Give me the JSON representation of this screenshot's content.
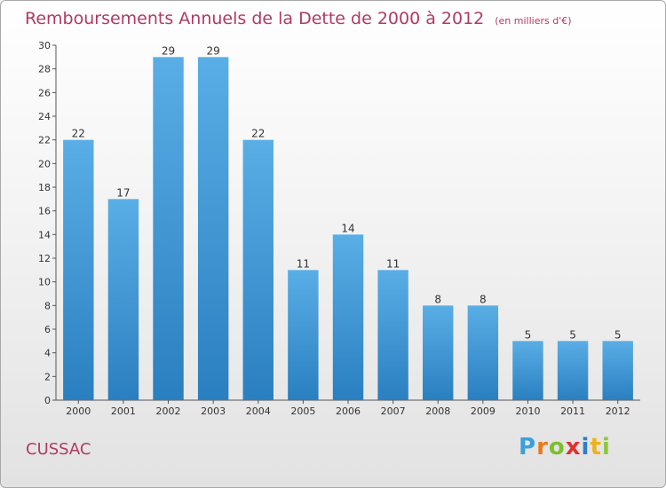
{
  "header": {
    "title": "Remboursements Annuels de la Dette de 2000 à 2012",
    "unit": "(en milliers d'€)"
  },
  "footer": {
    "commune": "CUSSAC",
    "logo_text": "Proxiti"
  },
  "colors": {
    "bar_top": "#5aaee6",
    "bar_bottom": "#2a7fc0",
    "title": "#b03a63"
  },
  "chart_data": {
    "type": "bar",
    "title": "Remboursements Annuels de la Dette de 2000 à 2012",
    "subtitle": "(en milliers d'€)",
    "categories": [
      "2000",
      "2001",
      "2002",
      "2003",
      "2004",
      "2005",
      "2006",
      "2007",
      "2008",
      "2009",
      "2010",
      "2011",
      "2012"
    ],
    "values": [
      22,
      17,
      29,
      29,
      22,
      11,
      14,
      11,
      8,
      8,
      5,
      5,
      5
    ],
    "ylim": [
      0,
      30
    ],
    "yticks": [
      0,
      2,
      4,
      6,
      8,
      10,
      12,
      14,
      16,
      18,
      20,
      22,
      24,
      26,
      28,
      30
    ],
    "grid": false,
    "legend": "none"
  }
}
